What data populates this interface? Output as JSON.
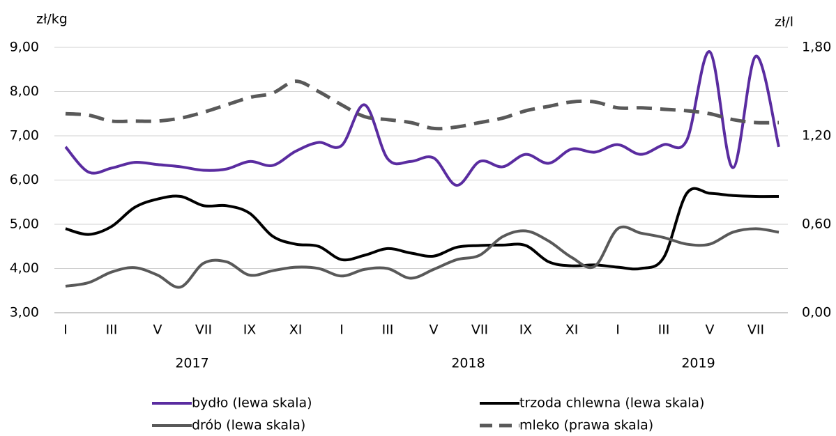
{
  "chart_data": {
    "type": "line",
    "ylabel": "zł/kg",
    "y2label": "zł/l",
    "categories": [
      "I",
      null,
      "III",
      null,
      "V",
      null,
      "VII",
      null,
      "IX",
      null,
      "XI",
      null,
      "I",
      null,
      "III",
      null,
      "V",
      null,
      "VII",
      null,
      "IX",
      null,
      "XI",
      null,
      "I",
      null,
      "III",
      null,
      "V",
      null,
      "VII",
      null
    ],
    "years": [
      "2017",
      "2018",
      "2019"
    ],
    "ylim": [
      3,
      9
    ],
    "yticks": [
      {
        "value": 3,
        "label": "3,00"
      },
      {
        "value": 4,
        "label": "4,00"
      },
      {
        "value": 5,
        "label": "5,00"
      },
      {
        "value": 6,
        "label": "6,00"
      },
      {
        "value": 7,
        "label": "7,00"
      },
      {
        "value": 8,
        "label": "8,00"
      },
      {
        "value": 9,
        "label": "9,00"
      }
    ],
    "y2lim": [
      0,
      1.8
    ],
    "y2ticks": [
      {
        "value": 0,
        "label": "0,00"
      },
      {
        "value": 0.6,
        "label": "0,60"
      },
      {
        "value": 1.2,
        "label": "1,20"
      },
      {
        "value": 1.8,
        "label": "1,80"
      }
    ],
    "grid": true,
    "legend": "bottom",
    "series": [
      {
        "name": "bydło (lewa skala)",
        "color": "#5a2ca0",
        "values": [
          6.75,
          6.18,
          6.27,
          6.4,
          6.35,
          6.3,
          6.22,
          6.25,
          6.42,
          6.33,
          6.65,
          6.85,
          6.78,
          7.7,
          6.48,
          6.42,
          6.5,
          5.88,
          6.42,
          6.3,
          6.58,
          6.38,
          6.7,
          6.63,
          6.8,
          6.58,
          6.8,
          6.9,
          8.9,
          6.28,
          8.8,
          6.75
        ]
      },
      {
        "name": "trzoda chlewna (lewa skala)",
        "color": "#000000",
        "values": [
          4.9,
          4.77,
          4.95,
          5.38,
          5.57,
          5.63,
          5.42,
          5.42,
          5.25,
          4.73,
          4.55,
          4.5,
          4.2,
          4.3,
          4.45,
          4.35,
          4.28,
          4.48,
          4.52,
          4.53,
          4.52,
          4.15,
          4.06,
          4.08,
          4.03,
          4.0,
          4.25,
          5.7,
          5.7,
          5.65,
          5.63,
          5.63
        ]
      },
      {
        "name": "drób (lewa skala)",
        "color": "#595959",
        "values": [
          3.6,
          3.68,
          3.92,
          4.02,
          3.85,
          3.58,
          4.12,
          4.15,
          3.85,
          3.95,
          4.03,
          4.0,
          3.83,
          3.98,
          4.0,
          3.78,
          3.98,
          4.2,
          4.3,
          4.72,
          4.85,
          4.62,
          4.25,
          4.05,
          4.9,
          4.8,
          4.7,
          4.55,
          4.55,
          4.82,
          4.9,
          4.82
        ]
      },
      {
        "name": "mleko (prawa skala)",
        "color": "#595959",
        "dashed": true,
        "axis": "y2",
        "values": [
          1.35,
          1.34,
          1.3,
          1.3,
          1.3,
          1.32,
          1.36,
          1.41,
          1.46,
          1.49,
          1.57,
          1.5,
          1.41,
          1.33,
          1.31,
          1.29,
          1.25,
          1.26,
          1.29,
          1.32,
          1.37,
          1.4,
          1.43,
          1.43,
          1.39,
          1.39,
          1.38,
          1.37,
          1.35,
          1.31,
          1.29,
          1.29
        ]
      }
    ]
  }
}
